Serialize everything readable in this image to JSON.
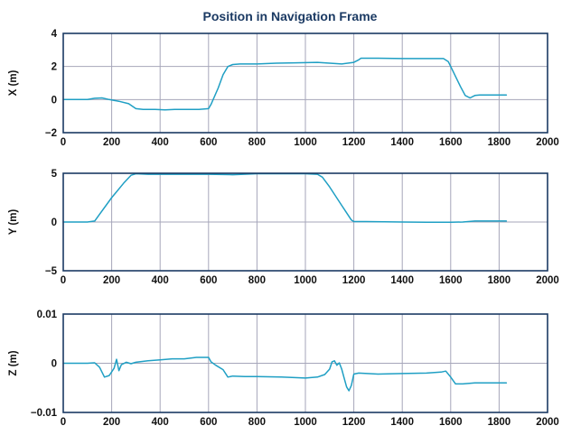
{
  "chart": {
    "title": "Position in Navigation Frame",
    "series_color": "#1f9fc4"
  },
  "chart_data": [
    {
      "type": "line",
      "title": "Position in Navigation Frame",
      "xlabel": "",
      "ylabel": "X (m)",
      "xlim": [
        0,
        2000
      ],
      "ylim": [
        -2,
        4
      ],
      "x_ticks": [
        0,
        200,
        400,
        600,
        800,
        1000,
        1200,
        1400,
        1600,
        1800,
        2000
      ],
      "y_ticks": [
        -2,
        0,
        2,
        4
      ],
      "x_tick_labels": [
        "0",
        "200",
        "400",
        "600",
        "800",
        "1000",
        "1200",
        "1400",
        "1600",
        "1800",
        "2000"
      ],
      "y_tick_labels": [
        "−2",
        "0",
        "2",
        "4"
      ],
      "grid": true,
      "series": [
        {
          "x": [
            0,
            100,
            130,
            160,
            190,
            230,
            270,
            300,
            330,
            380,
            420,
            460,
            500,
            560,
            600,
            610,
            640,
            660,
            680,
            700,
            730,
            800,
            880,
            960,
            1050,
            1100,
            1150,
            1200,
            1220,
            1230,
            1300,
            1400,
            1500,
            1570,
            1590,
            1610,
            1640,
            1660,
            1680,
            1700,
            1720,
            1830
          ],
          "y": [
            0,
            0,
            0.08,
            0.1,
            0,
            -0.1,
            -0.25,
            -0.55,
            -0.6,
            -0.6,
            -0.62,
            -0.6,
            -0.6,
            -0.6,
            -0.55,
            -0.3,
            0.7,
            1.5,
            2.0,
            2.12,
            2.15,
            2.15,
            2.2,
            2.22,
            2.25,
            2.2,
            2.15,
            2.25,
            2.4,
            2.5,
            2.5,
            2.48,
            2.48,
            2.48,
            2.3,
            1.7,
            0.8,
            0.25,
            0.1,
            0.25,
            0.28,
            0.28
          ]
        }
      ]
    },
    {
      "type": "line",
      "xlabel": "",
      "ylabel": "Y (m)",
      "xlim": [
        0,
        2000
      ],
      "ylim": [
        -5,
        5
      ],
      "x_ticks": [
        0,
        200,
        400,
        600,
        800,
        1000,
        1200,
        1400,
        1600,
        1800,
        2000
      ],
      "y_ticks": [
        -5,
        0,
        5
      ],
      "x_tick_labels": [
        "0",
        "200",
        "400",
        "600",
        "800",
        "1000",
        "1200",
        "1400",
        "1600",
        "1800",
        "2000"
      ],
      "y_tick_labels": [
        "−5",
        "0",
        "5"
      ],
      "grid": true,
      "series": [
        {
          "x": [
            0,
            100,
            130,
            150,
            200,
            250,
            280,
            300,
            350,
            400,
            500,
            600,
            700,
            800,
            900,
            1000,
            1050,
            1070,
            1100,
            1150,
            1190,
            1200,
            1250,
            1400,
            1500,
            1600,
            1650,
            1700,
            1830
          ],
          "y": [
            0,
            0,
            0.1,
            0.8,
            2.5,
            4.0,
            4.8,
            4.95,
            4.9,
            4.9,
            4.9,
            4.9,
            4.85,
            4.95,
            4.95,
            4.95,
            4.9,
            4.6,
            3.6,
            1.7,
            0.2,
            0.05,
            0.05,
            0,
            -0.02,
            -0.02,
            0,
            0.1,
            0.1
          ]
        }
      ]
    },
    {
      "type": "line",
      "xlabel": "",
      "ylabel": "Z (m)",
      "xlim": [
        0,
        2000
      ],
      "ylim": [
        -0.01,
        0.01
      ],
      "x_ticks": [
        0,
        200,
        400,
        600,
        800,
        1000,
        1200,
        1400,
        1600,
        1800,
        2000
      ],
      "y_ticks": [
        -0.01,
        0,
        0.01
      ],
      "x_tick_labels": [
        "0",
        "200",
        "400",
        "600",
        "800",
        "1000",
        "1200",
        "1400",
        "1600",
        "1800",
        "2000"
      ],
      "y_tick_labels": [
        "−0.01",
        "0",
        "0.01"
      ],
      "grid": true,
      "series": [
        {
          "x": [
            0,
            100,
            130,
            150,
            170,
            190,
            210,
            220,
            230,
            240,
            260,
            280,
            300,
            350,
            400,
            450,
            500,
            550,
            600,
            610,
            630,
            660,
            680,
            700,
            750,
            800,
            900,
            1000,
            1050,
            1080,
            1100,
            1110,
            1120,
            1130,
            1140,
            1150,
            1160,
            1170,
            1180,
            1190,
            1200,
            1220,
            1300,
            1400,
            1500,
            1560,
            1580,
            1600,
            1620,
            1650,
            1700,
            1830
          ],
          "y": [
            0,
            0,
            0.0001,
            -0.0008,
            -0.0028,
            -0.0025,
            -0.001,
            0.0008,
            -0.0015,
            -0.0003,
            0.0002,
            -0.0001,
            0.0002,
            0.0005,
            0.0007,
            0.0009,
            0.0009,
            0.0012,
            0.0012,
            0.0003,
            -0.0004,
            -0.0013,
            -0.0028,
            -0.0026,
            -0.0027,
            -0.0027,
            -0.0028,
            -0.003,
            -0.0028,
            -0.0023,
            -0.0012,
            0.0003,
            0.0005,
            -0.0004,
            0.0001,
            -0.0012,
            -0.003,
            -0.0048,
            -0.0056,
            -0.0045,
            -0.0022,
            -0.002,
            -0.0022,
            -0.0021,
            -0.002,
            -0.0018,
            -0.0016,
            -0.0028,
            -0.0042,
            -0.0042,
            -0.004,
            -0.004
          ]
        }
      ]
    }
  ]
}
